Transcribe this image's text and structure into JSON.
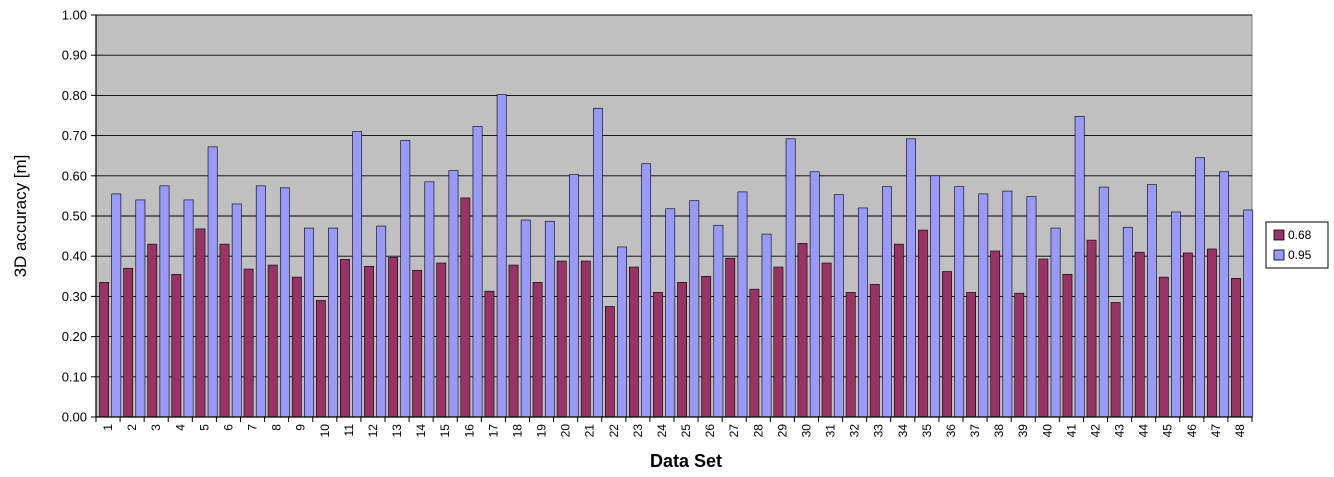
{
  "chart_data": {
    "type": "bar",
    "xlabel": "Data Set",
    "ylabel": "3D accuracy [m]",
    "ylim": [
      0,
      1.0
    ],
    "y_ticks": [
      "0.00",
      "0.10",
      "0.20",
      "0.30",
      "0.40",
      "0.50",
      "0.60",
      "0.70",
      "0.80",
      "0.90",
      "1.00"
    ],
    "categories": [
      "1",
      "2",
      "3",
      "4",
      "5",
      "6",
      "7",
      "8",
      "9",
      "10",
      "11",
      "12",
      "13",
      "14",
      "15",
      "16",
      "17",
      "18",
      "19",
      "20",
      "21",
      "22",
      "23",
      "24",
      "25",
      "26",
      "27",
      "28",
      "29",
      "30",
      "31",
      "32",
      "33",
      "34",
      "35",
      "36",
      "37",
      "38",
      "39",
      "40",
      "41",
      "42",
      "43",
      "44",
      "45",
      "46",
      "47",
      "48"
    ],
    "series": [
      {
        "name": "0.68",
        "color": "#993366",
        "values": [
          0.335,
          0.37,
          0.43,
          0.355,
          0.468,
          0.43,
          0.368,
          0.378,
          0.348,
          0.29,
          0.392,
          0.375,
          0.397,
          0.365,
          0.383,
          0.545,
          0.313,
          0.378,
          0.335,
          0.388,
          0.388,
          0.275,
          0.373,
          0.31,
          0.335,
          0.35,
          0.395,
          0.318,
          0.373,
          0.432,
          0.383,
          0.31,
          0.33,
          0.43,
          0.465,
          0.362,
          0.31,
          0.413,
          0.308,
          0.393,
          0.355,
          0.44,
          0.285,
          0.41,
          0.348,
          0.408,
          0.418,
          0.345
        ]
      },
      {
        "name": "0.95",
        "color": "#9999ff",
        "values": [
          0.555,
          0.54,
          0.575,
          0.54,
          0.672,
          0.53,
          0.575,
          0.57,
          0.47,
          0.47,
          0.71,
          0.475,
          0.688,
          0.585,
          0.613,
          0.723,
          0.802,
          0.49,
          0.487,
          0.603,
          0.768,
          0.423,
          0.63,
          0.518,
          0.538,
          0.477,
          0.56,
          0.455,
          0.692,
          0.61,
          0.553,
          0.52,
          0.573,
          0.692,
          0.6,
          0.573,
          0.555,
          0.562,
          0.548,
          0.47,
          0.748,
          0.572,
          0.472,
          0.578,
          0.51,
          0.645,
          0.61,
          0.515
        ]
      }
    ],
    "plot_background": "#c0c0c0",
    "grid": true,
    "legend_position": "right"
  }
}
